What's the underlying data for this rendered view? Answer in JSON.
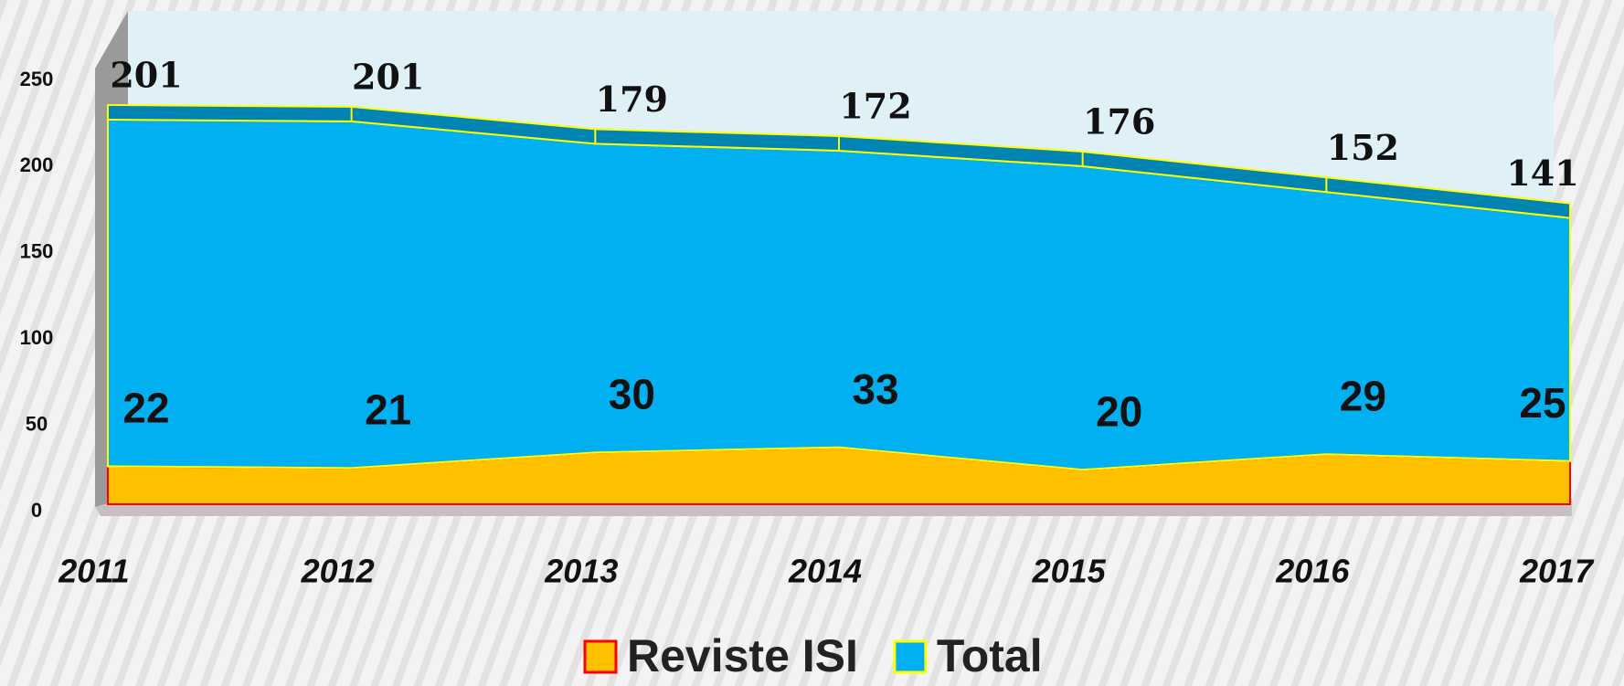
{
  "chart_data": {
    "type": "area",
    "stacked": true,
    "categories": [
      "2011",
      "2012",
      "2013",
      "2014",
      "2015",
      "2016",
      "2017"
    ],
    "series": [
      {
        "name": "Reviste ISI",
        "color": "#ffc000",
        "edge": "#ff0000",
        "values": [
          22,
          21,
          30,
          33,
          20,
          29,
          25
        ]
      },
      {
        "name": "Total",
        "color": "#00b0f0",
        "edge": "#ffff00",
        "values": [
          201,
          201,
          179,
          172,
          176,
          152,
          141
        ]
      }
    ],
    "ylim": [
      0,
      250
    ],
    "yticks": [
      0,
      50,
      100,
      150,
      200,
      250
    ],
    "grid": false,
    "legend": "bottom"
  }
}
